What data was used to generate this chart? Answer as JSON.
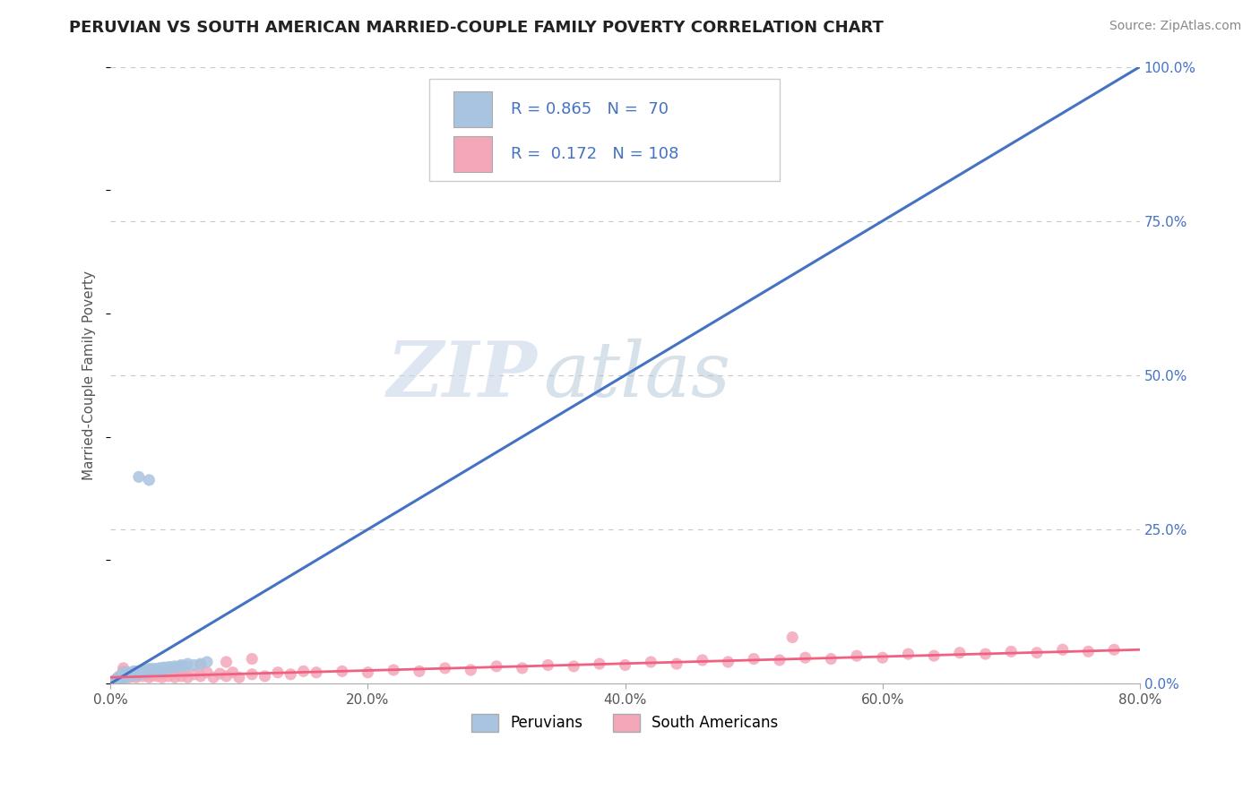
{
  "title": "PERUVIAN VS SOUTH AMERICAN MARRIED-COUPLE FAMILY POVERTY CORRELATION CHART",
  "source": "Source: ZipAtlas.com",
  "ylabel": "Married-Couple Family Poverty",
  "xlim": [
    0,
    0.8
  ],
  "ylim": [
    0,
    1.0
  ],
  "xtick_labels": [
    "0.0%",
    "20.0%",
    "40.0%",
    "60.0%",
    "80.0%"
  ],
  "xtick_values": [
    0.0,
    0.2,
    0.4,
    0.6,
    0.8
  ],
  "ytick_labels_right": [
    "0.0%",
    "25.0%",
    "50.0%",
    "75.0%",
    "100.0%"
  ],
  "ytick_values_right": [
    0.0,
    0.25,
    0.5,
    0.75,
    1.0
  ],
  "peruvian_color": "#a8c4e0",
  "south_american_color": "#f4a7b9",
  "peruvian_line_color": "#4472c4",
  "south_american_line_color": "#f06080",
  "R_peruvian": 0.865,
  "N_peruvian": 70,
  "R_south_american": 0.172,
  "N_south_american": 108,
  "watermark_zip": "ZIP",
  "watermark_atlas": "atlas",
  "background_color": "#ffffff",
  "grid_color": "#c8c8c8",
  "legend_label_1": "Peruvians",
  "legend_label_2": "South Americans",
  "peruvian_line_x0": 0.0,
  "peruvian_line_y0": 0.0,
  "peruvian_line_x1": 0.8,
  "peruvian_line_y1": 1.0,
  "south_american_line_x0": 0.0,
  "south_american_line_y0": 0.01,
  "south_american_line_x1": 0.8,
  "south_american_line_y1": 0.055,
  "peruvian_scatter_x": [
    0.005,
    0.005,
    0.005,
    0.006,
    0.006,
    0.007,
    0.007,
    0.008,
    0.008,
    0.009,
    0.009,
    0.01,
    0.01,
    0.01,
    0.01,
    0.01,
    0.01,
    0.011,
    0.012,
    0.012,
    0.013,
    0.013,
    0.014,
    0.015,
    0.015,
    0.016,
    0.017,
    0.018,
    0.018,
    0.019,
    0.02,
    0.02,
    0.021,
    0.022,
    0.023,
    0.024,
    0.025,
    0.025,
    0.026,
    0.027,
    0.028,
    0.029,
    0.03,
    0.03,
    0.031,
    0.032,
    0.033,
    0.034,
    0.035,
    0.036,
    0.037,
    0.038,
    0.039,
    0.04,
    0.041,
    0.042,
    0.043,
    0.045,
    0.046,
    0.048,
    0.05,
    0.052,
    0.055,
    0.058,
    0.06,
    0.065,
    0.07,
    0.075,
    0.022,
    0.03
  ],
  "peruvian_scatter_y": [
    0.005,
    0.007,
    0.008,
    0.006,
    0.009,
    0.007,
    0.01,
    0.008,
    0.012,
    0.009,
    0.011,
    0.006,
    0.008,
    0.01,
    0.012,
    0.015,
    0.018,
    0.013,
    0.012,
    0.016,
    0.014,
    0.018,
    0.015,
    0.012,
    0.017,
    0.016,
    0.018,
    0.014,
    0.02,
    0.016,
    0.014,
    0.02,
    0.018,
    0.016,
    0.02,
    0.018,
    0.016,
    0.022,
    0.02,
    0.018,
    0.022,
    0.02,
    0.018,
    0.024,
    0.022,
    0.02,
    0.024,
    0.022,
    0.02,
    0.024,
    0.022,
    0.025,
    0.024,
    0.022,
    0.026,
    0.024,
    0.026,
    0.025,
    0.027,
    0.026,
    0.028,
    0.027,
    0.03,
    0.028,
    0.032,
    0.03,
    0.032,
    0.035,
    0.335,
    0.33
  ],
  "south_american_scatter_x": [
    0.003,
    0.004,
    0.005,
    0.005,
    0.006,
    0.006,
    0.007,
    0.007,
    0.008,
    0.008,
    0.009,
    0.009,
    0.01,
    0.01,
    0.01,
    0.01,
    0.01,
    0.011,
    0.011,
    0.012,
    0.012,
    0.013,
    0.013,
    0.014,
    0.015,
    0.015,
    0.016,
    0.017,
    0.018,
    0.019,
    0.02,
    0.02,
    0.021,
    0.022,
    0.023,
    0.025,
    0.026,
    0.028,
    0.03,
    0.03,
    0.032,
    0.034,
    0.036,
    0.038,
    0.04,
    0.042,
    0.045,
    0.048,
    0.05,
    0.052,
    0.055,
    0.058,
    0.06,
    0.065,
    0.07,
    0.075,
    0.08,
    0.085,
    0.09,
    0.095,
    0.1,
    0.11,
    0.12,
    0.13,
    0.14,
    0.15,
    0.16,
    0.18,
    0.2,
    0.22,
    0.24,
    0.26,
    0.28,
    0.3,
    0.32,
    0.34,
    0.36,
    0.38,
    0.4,
    0.42,
    0.44,
    0.46,
    0.48,
    0.5,
    0.52,
    0.54,
    0.56,
    0.58,
    0.6,
    0.62,
    0.64,
    0.66,
    0.68,
    0.7,
    0.72,
    0.74,
    0.76,
    0.78,
    0.05,
    0.07,
    0.09,
    0.11,
    0.035,
    0.015,
    0.025,
    0.045,
    0.055,
    0.53
  ],
  "south_american_scatter_y": [
    0.005,
    0.006,
    0.005,
    0.008,
    0.007,
    0.01,
    0.008,
    0.012,
    0.009,
    0.013,
    0.01,
    0.015,
    0.008,
    0.012,
    0.016,
    0.02,
    0.025,
    0.013,
    0.018,
    0.011,
    0.016,
    0.012,
    0.018,
    0.014,
    0.01,
    0.016,
    0.013,
    0.015,
    0.012,
    0.017,
    0.01,
    0.016,
    0.013,
    0.018,
    0.015,
    0.012,
    0.018,
    0.015,
    0.01,
    0.018,
    0.013,
    0.016,
    0.012,
    0.018,
    0.01,
    0.016,
    0.012,
    0.018,
    0.01,
    0.016,
    0.012,
    0.018,
    0.01,
    0.015,
    0.012,
    0.018,
    0.01,
    0.016,
    0.012,
    0.018,
    0.01,
    0.015,
    0.012,
    0.018,
    0.015,
    0.02,
    0.018,
    0.02,
    0.018,
    0.022,
    0.02,
    0.025,
    0.022,
    0.028,
    0.025,
    0.03,
    0.028,
    0.032,
    0.03,
    0.035,
    0.032,
    0.038,
    0.035,
    0.04,
    0.038,
    0.042,
    0.04,
    0.045,
    0.042,
    0.048,
    0.045,
    0.05,
    0.048,
    0.052,
    0.05,
    0.055,
    0.052,
    0.055,
    0.025,
    0.03,
    0.035,
    0.04,
    0.02,
    0.015,
    0.018,
    0.022,
    0.028,
    0.075
  ]
}
